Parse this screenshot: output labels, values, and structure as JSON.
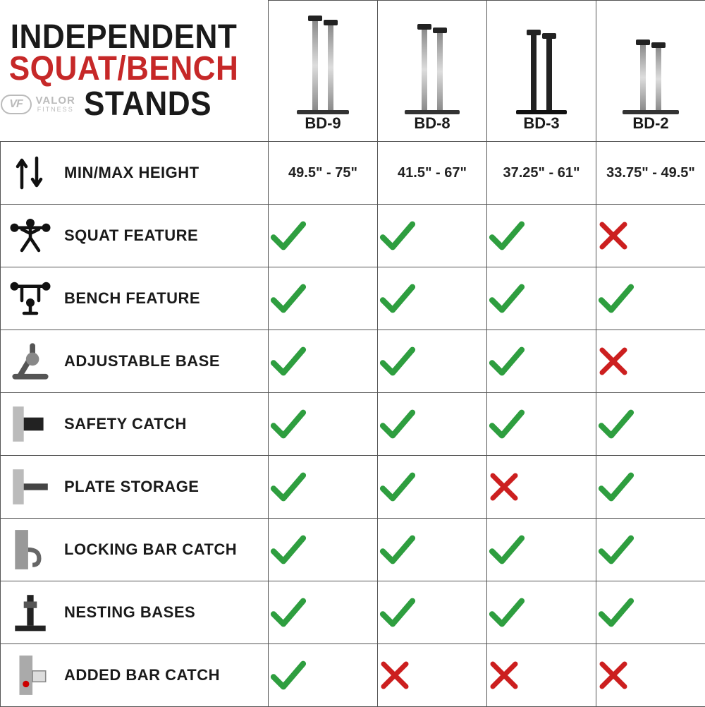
{
  "title": {
    "line1": "INDEPENDENT",
    "line2": "SQUAT/BENCH",
    "line3": "STANDS",
    "brand_initials": "VF",
    "brand_name": "VALOR",
    "brand_sub": "FITNESS"
  },
  "colors": {
    "title_black": "#1a1a1a",
    "title_red": "#c62828",
    "check_green": "#2e9e3f",
    "x_red": "#cc1f1f",
    "border": "#555555",
    "bg": "#ffffff",
    "logo_gray": "#bbbbbb"
  },
  "products": [
    {
      "id": "BD-9",
      "post_height": 130,
      "base_w": 52,
      "dark": false
    },
    {
      "id": "BD-8",
      "post_height": 118,
      "base_w": 56,
      "dark": false
    },
    {
      "id": "BD-3",
      "post_height": 110,
      "base_w": 50,
      "dark": true
    },
    {
      "id": "BD-2",
      "post_height": 96,
      "base_w": 58,
      "dark": false
    }
  ],
  "features": [
    {
      "key": "minmax",
      "label": "MIN/MAX HEIGHT",
      "type": "text",
      "values": [
        "49.5\" - 75\"",
        "41.5\" - 67\"",
        "37.25\" - 61\"",
        "33.75\" - 49.5\""
      ]
    },
    {
      "key": "squat",
      "label": "SQUAT FEATURE",
      "type": "bool",
      "values": [
        true,
        true,
        true,
        false
      ]
    },
    {
      "key": "bench",
      "label": "BENCH FEATURE",
      "type": "bool",
      "values": [
        true,
        true,
        true,
        true
      ]
    },
    {
      "key": "adjbase",
      "label": "ADJUSTABLE BASE",
      "type": "bool",
      "values": [
        true,
        true,
        true,
        false
      ]
    },
    {
      "key": "safety",
      "label": "SAFETY CATCH",
      "type": "bool",
      "values": [
        true,
        true,
        true,
        true
      ]
    },
    {
      "key": "plate",
      "label": "PLATE STORAGE",
      "type": "bool",
      "values": [
        true,
        true,
        false,
        true
      ]
    },
    {
      "key": "locking",
      "label": "LOCKING BAR CATCH",
      "type": "bool",
      "values": [
        true,
        true,
        true,
        true
      ]
    },
    {
      "key": "nesting",
      "label": "NESTING BASES",
      "type": "bool",
      "values": [
        true,
        true,
        true,
        true
      ]
    },
    {
      "key": "added",
      "label": "ADDED BAR CATCH",
      "type": "bool",
      "values": [
        true,
        false,
        false,
        false
      ]
    }
  ],
  "feature_icons": {
    "minmax": "arrows",
    "squat": "squat",
    "bench": "bench",
    "adjbase": "base",
    "safety": "bracket",
    "plate": "peg",
    "locking": "hook",
    "nesting": "stand",
    "added": "post"
  },
  "fonts": {
    "title_size": 48,
    "product_label_size": 22,
    "feature_label_size": 22,
    "height_value_size": 20
  }
}
